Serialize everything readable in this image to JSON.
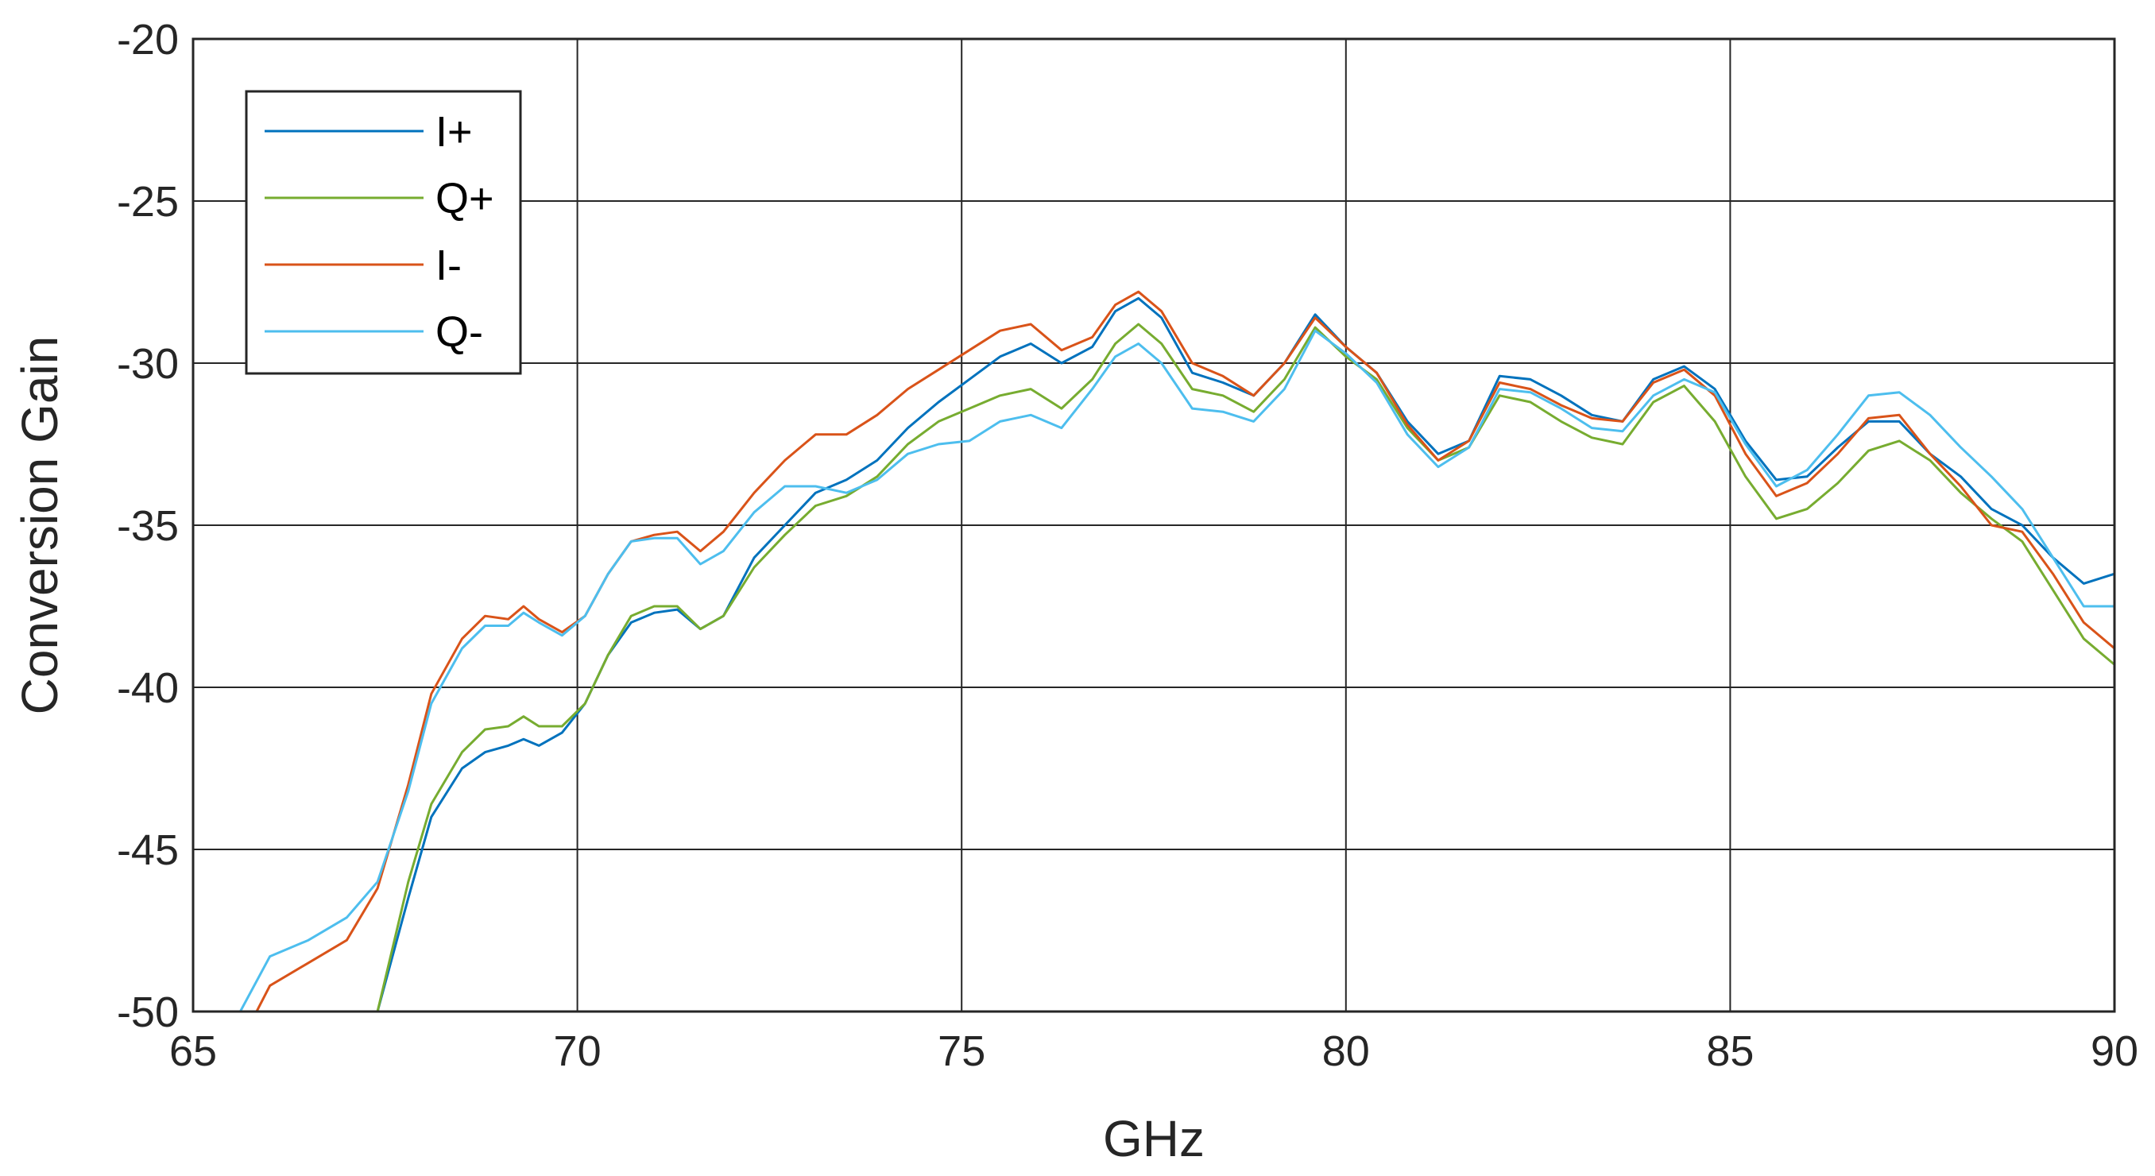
{
  "chart_data": {
    "type": "line",
    "title": "",
    "xlabel": "GHz",
    "ylabel": "Conversion Gain",
    "xlim": [
      65,
      90
    ],
    "ylim": [
      -50,
      -20
    ],
    "xticks": [
      65,
      70,
      75,
      80,
      85,
      90
    ],
    "yticks": [
      -50,
      -45,
      -40,
      -35,
      -30,
      -25,
      -20
    ],
    "xtick_labels": [
      "65",
      "70",
      "75",
      "80",
      "85",
      "90"
    ],
    "ytick_labels": [
      "-50",
      "-45",
      "-40",
      "-35",
      "-30",
      "-25",
      "-20"
    ],
    "grid": true,
    "legend_position": "top-left",
    "x": [
      67.5,
      68,
      68.5,
      69,
      69.5,
      70,
      70.5,
      71,
      71.5,
      72,
      72.5,
      73,
      73.5,
      74,
      74.5,
      75,
      75.5,
      76,
      76.5,
      77,
      77.5,
      78,
      78.5,
      79,
      79.5,
      80,
      80.5,
      81,
      81.5,
      82,
      82.5,
      83,
      83.5,
      84,
      84.5,
      85,
      85.5,
      86,
      86.5,
      87,
      87.5,
      88,
      88.5,
      89,
      89.5,
      90
    ],
    "series": [
      {
        "name": "I+",
        "color": "#0072BD",
        "x": [
          65.5,
          66,
          66.5,
          67,
          67.4,
          67.8,
          68.1,
          68.5,
          68.8,
          69.1,
          69.3,
          69.5,
          69.8,
          70.1,
          70.4,
          70.7,
          71.0,
          71.3,
          71.6,
          71.9,
          72.3,
          72.7,
          73.1,
          73.5,
          73.9,
          74.3,
          74.7,
          75.1,
          75.5,
          75.9,
          76.3,
          76.7,
          77.0,
          77.3,
          77.6,
          78.0,
          78.4,
          78.8,
          79.2,
          79.6,
          80.0,
          80.4,
          80.8,
          81.2,
          81.6,
          82.0,
          82.4,
          82.8,
          83.2,
          83.6,
          84.0,
          84.4,
          84.8,
          85.2,
          85.6,
          86.0,
          86.4,
          86.8,
          87.2,
          87.6,
          88.0,
          88.4,
          88.8,
          89.2,
          89.6,
          90.0
        ],
        "values": [
          -51.5,
          -51.5,
          -51.5,
          -51.5,
          -50.0,
          -46.5,
          -44.0,
          -42.5,
          -42.0,
          -41.8,
          -41.6,
          -41.8,
          -41.4,
          -40.5,
          -39.0,
          -38.0,
          -37.7,
          -37.6,
          -38.2,
          -37.8,
          -36.0,
          -35.0,
          -34.0,
          -33.6,
          -33.0,
          -32.0,
          -31.2,
          -30.5,
          -29.8,
          -29.4,
          -30.0,
          -29.5,
          -28.4,
          -28.0,
          -28.6,
          -30.3,
          -30.6,
          -31.0,
          -30.0,
          -28.5,
          -29.5,
          -30.3,
          -31.8,
          -32.8,
          -32.4,
          -30.4,
          -30.5,
          -31.0,
          -31.6,
          -31.8,
          -30.5,
          -30.1,
          -30.8,
          -32.4,
          -33.6,
          -33.5,
          -32.6,
          -31.8,
          -31.8,
          -32.8,
          -33.5,
          -34.5,
          -35.0,
          -36.0,
          -36.8,
          -36.5
        ]
      },
      {
        "name": "Q+",
        "color": "#77AC30",
        "x": [
          65.5,
          66,
          66.5,
          67,
          67.4,
          67.8,
          68.1,
          68.5,
          68.8,
          69.1,
          69.3,
          69.5,
          69.8,
          70.1,
          70.4,
          70.7,
          71.0,
          71.3,
          71.6,
          71.9,
          72.3,
          72.7,
          73.1,
          73.5,
          73.9,
          74.3,
          74.7,
          75.1,
          75.5,
          75.9,
          76.3,
          76.7,
          77.0,
          77.3,
          77.6,
          78.0,
          78.4,
          78.8,
          79.2,
          79.6,
          80.0,
          80.4,
          80.8,
          81.2,
          81.6,
          82.0,
          82.4,
          82.8,
          83.2,
          83.6,
          84.0,
          84.4,
          84.8,
          85.2,
          85.6,
          86.0,
          86.4,
          86.8,
          87.2,
          87.6,
          88.0,
          88.4,
          88.8,
          89.2,
          89.6,
          90.0
        ],
        "values": [
          -51.5,
          -51.5,
          -51.5,
          -51.5,
          -50.0,
          -46.0,
          -43.6,
          -42.0,
          -41.3,
          -41.2,
          -40.9,
          -41.2,
          -41.2,
          -40.5,
          -39.0,
          -37.8,
          -37.5,
          -37.5,
          -38.2,
          -37.8,
          -36.3,
          -35.3,
          -34.4,
          -34.1,
          -33.5,
          -32.5,
          -31.8,
          -31.4,
          -31.0,
          -30.8,
          -31.4,
          -30.5,
          -29.4,
          -28.8,
          -29.4,
          -30.8,
          -31.0,
          -31.5,
          -30.5,
          -28.9,
          -29.8,
          -30.5,
          -32.0,
          -33.0,
          -32.6,
          -31.0,
          -31.2,
          -31.8,
          -32.3,
          -32.5,
          -31.2,
          -30.7,
          -31.8,
          -33.5,
          -34.8,
          -34.5,
          -33.7,
          -32.7,
          -32.4,
          -33.0,
          -34.0,
          -34.8,
          -35.5,
          -37.0,
          -38.5,
          -39.3
        ]
      },
      {
        "name": "I-",
        "color": "#D95319",
        "x": [
          65.5,
          66,
          66.5,
          67,
          67.4,
          67.8,
          68.1,
          68.5,
          68.8,
          69.1,
          69.3,
          69.5,
          69.8,
          70.1,
          70.4,
          70.7,
          71.0,
          71.3,
          71.6,
          71.9,
          72.3,
          72.7,
          73.1,
          73.5,
          73.9,
          74.3,
          74.7,
          75.1,
          75.5,
          75.9,
          76.3,
          76.7,
          77.0,
          77.3,
          77.6,
          78.0,
          78.4,
          78.8,
          79.2,
          79.6,
          80.0,
          80.4,
          80.8,
          81.2,
          81.6,
          82.0,
          82.4,
          82.8,
          83.2,
          83.6,
          84.0,
          84.4,
          84.8,
          85.2,
          85.6,
          86.0,
          86.4,
          86.8,
          87.2,
          87.6,
          88.0,
          88.4,
          88.8,
          89.2,
          89.6,
          90.0
        ],
        "values": [
          -51.5,
          -49.2,
          -48.5,
          -47.8,
          -46.2,
          -43.0,
          -40.2,
          -38.5,
          -37.8,
          -37.9,
          -37.5,
          -37.9,
          -38.3,
          -37.8,
          -36.5,
          -35.5,
          -35.3,
          -35.2,
          -35.8,
          -35.2,
          -34.0,
          -33.0,
          -32.2,
          -32.2,
          -31.6,
          -30.8,
          -30.2,
          -29.6,
          -29.0,
          -28.8,
          -29.6,
          -29.2,
          -28.2,
          -27.8,
          -28.4,
          -30.0,
          -30.4,
          -31.0,
          -30.0,
          -28.6,
          -29.5,
          -30.3,
          -31.9,
          -33.0,
          -32.4,
          -30.6,
          -30.8,
          -31.3,
          -31.7,
          -31.8,
          -30.6,
          -30.2,
          -31.0,
          -32.8,
          -34.1,
          -33.7,
          -32.8,
          -31.7,
          -31.6,
          -32.8,
          -33.8,
          -35.0,
          -35.2,
          -36.5,
          -38.0,
          -38.8
        ]
      },
      {
        "name": "Q-",
        "color": "#4DBEEE",
        "x": [
          65.5,
          66,
          66.5,
          67,
          67.4,
          67.8,
          68.1,
          68.5,
          68.8,
          69.1,
          69.3,
          69.5,
          69.8,
          70.1,
          70.4,
          70.7,
          71.0,
          71.3,
          71.6,
          71.9,
          72.3,
          72.7,
          73.1,
          73.5,
          73.9,
          74.3,
          74.7,
          75.1,
          75.5,
          75.9,
          76.3,
          76.7,
          77.0,
          77.3,
          77.6,
          78.0,
          78.4,
          78.8,
          79.2,
          79.6,
          80.0,
          80.4,
          80.8,
          81.2,
          81.6,
          82.0,
          82.4,
          82.8,
          83.2,
          83.6,
          84.0,
          84.4,
          84.8,
          85.2,
          85.6,
          86.0,
          86.4,
          86.8,
          87.2,
          87.6,
          88.0,
          88.4,
          88.8,
          89.2,
          89.6,
          90.0
        ],
        "values": [
          -50.5,
          -48.3,
          -47.8,
          -47.1,
          -46.0,
          -43.2,
          -40.5,
          -38.8,
          -38.1,
          -38.1,
          -37.7,
          -38.0,
          -38.4,
          -37.8,
          -36.5,
          -35.5,
          -35.4,
          -35.4,
          -36.2,
          -35.8,
          -34.6,
          -33.8,
          -33.8,
          -34.0,
          -33.6,
          -32.8,
          -32.5,
          -32.4,
          -31.8,
          -31.6,
          -32.0,
          -30.8,
          -29.8,
          -29.4,
          -30.0,
          -31.4,
          -31.5,
          -31.8,
          -30.8,
          -29.0,
          -29.7,
          -30.6,
          -32.2,
          -33.2,
          -32.6,
          -30.8,
          -30.9,
          -31.4,
          -32.0,
          -32.1,
          -31.0,
          -30.5,
          -30.9,
          -32.5,
          -33.8,
          -33.3,
          -32.2,
          -31.0,
          -30.9,
          -31.6,
          -32.6,
          -33.5,
          -34.5,
          -36.0,
          -37.5,
          -37.5
        ]
      }
    ]
  }
}
